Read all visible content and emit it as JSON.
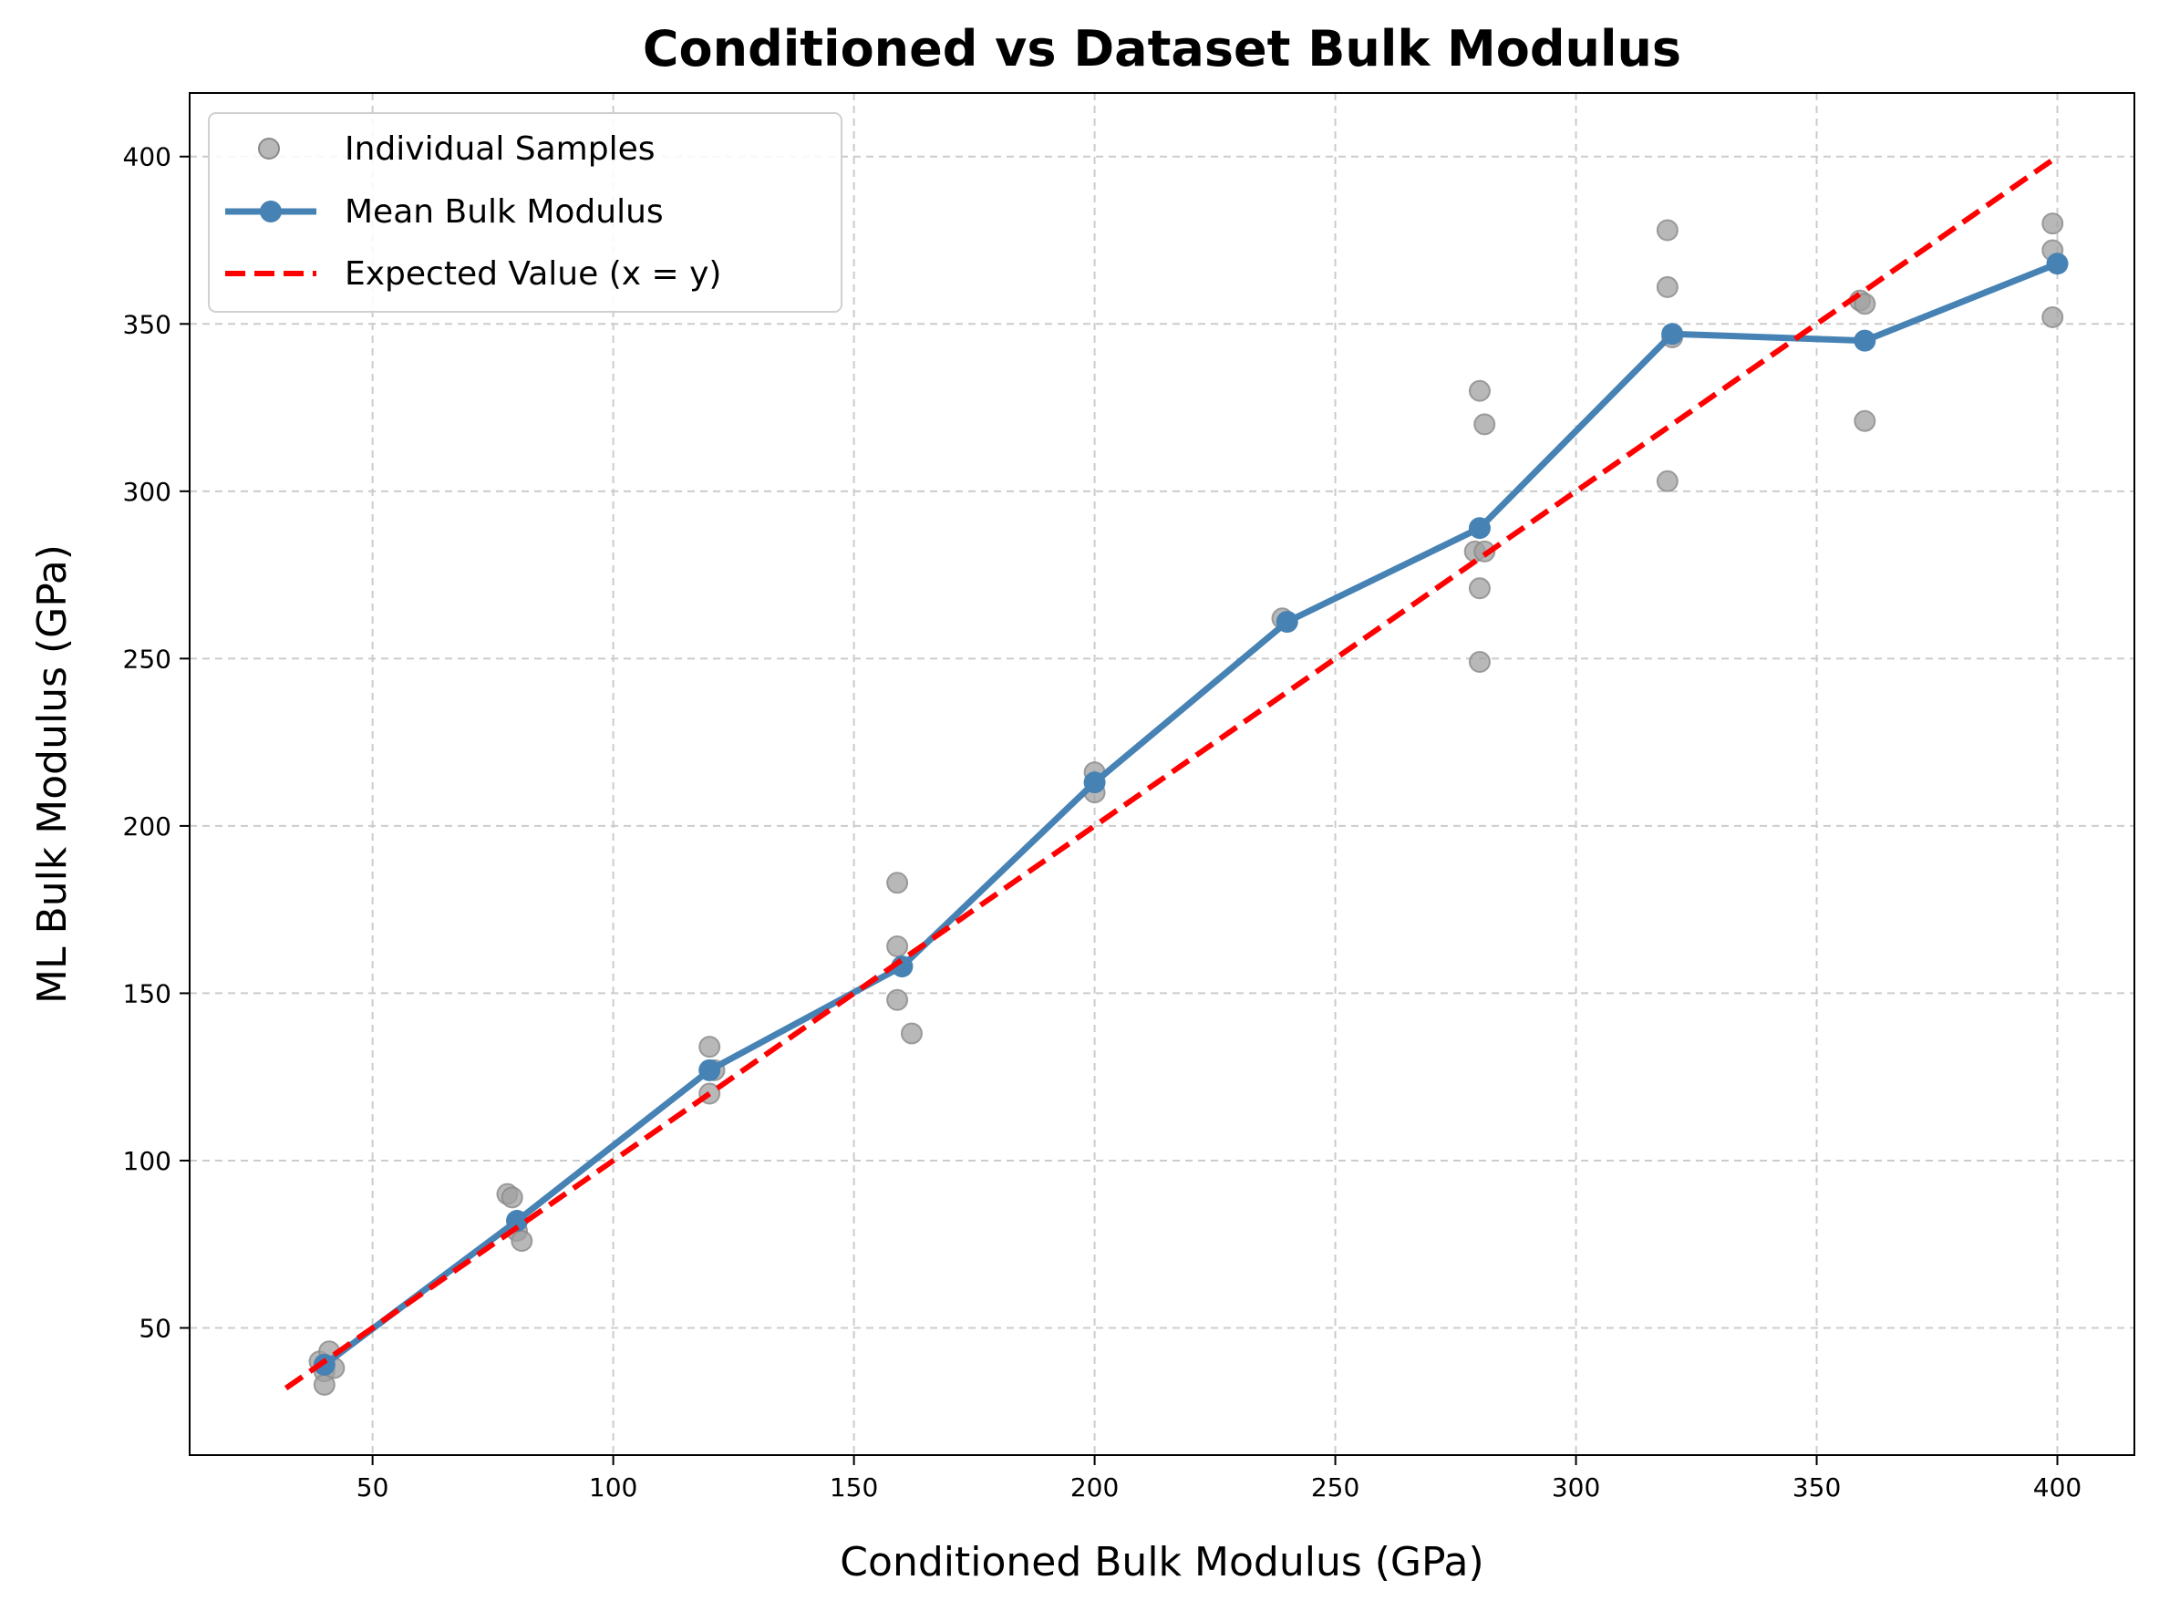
{
  "chart_data": {
    "type": "line",
    "title": "Conditioned vs Dataset Bulk Modulus",
    "xlabel": "Conditioned Bulk Modulus (GPa)",
    "ylabel": "ML Bulk Modulus (GPa)",
    "xlim": [
      12,
      416
    ],
    "ylim": [
      12,
      419
    ],
    "xticks": [
      50,
      100,
      150,
      200,
      250,
      300,
      350,
      400
    ],
    "yticks": [
      50,
      100,
      150,
      200,
      250,
      300,
      350,
      400
    ],
    "grid": true,
    "legend_position": "top-left",
    "series": [
      {
        "name": "Individual Samples",
        "kind": "scatter",
        "color": "#a0a0a0",
        "points": [
          [
            39,
            40
          ],
          [
            40,
            37
          ],
          [
            40,
            33
          ],
          [
            41,
            43
          ],
          [
            42,
            38
          ],
          [
            78,
            90
          ],
          [
            79,
            89
          ],
          [
            80,
            79
          ],
          [
            81,
            76
          ],
          [
            120,
            134
          ],
          [
            120,
            120
          ],
          [
            121,
            127
          ],
          [
            159,
            183
          ],
          [
            159,
            164
          ],
          [
            159,
            148
          ],
          [
            162,
            138
          ],
          [
            200,
            216
          ],
          [
            200,
            210
          ],
          [
            239,
            262
          ],
          [
            280,
            330
          ],
          [
            279,
            282
          ],
          [
            281,
            282
          ],
          [
            280,
            271
          ],
          [
            280,
            249
          ],
          [
            281,
            320
          ],
          [
            319,
            378
          ],
          [
            319,
            361
          ],
          [
            320,
            346
          ],
          [
            319,
            303
          ],
          [
            359,
            357
          ],
          [
            360,
            356
          ],
          [
            360,
            321
          ],
          [
            399,
            380
          ],
          [
            399,
            372
          ],
          [
            399,
            352
          ]
        ]
      },
      {
        "name": "Mean Bulk Modulus",
        "kind": "line-marker",
        "color": "#4682b4",
        "x": [
          40,
          80,
          120,
          160,
          200,
          240,
          280,
          320,
          360,
          400
        ],
        "y": [
          39,
          82,
          127,
          158,
          213,
          261,
          289,
          347,
          345,
          368
        ]
      },
      {
        "name": "Expected Value (x = y)",
        "kind": "dashed-line",
        "color": "#ff0000",
        "x": [
          32,
          400
        ],
        "y": [
          32,
          400
        ]
      }
    ]
  }
}
